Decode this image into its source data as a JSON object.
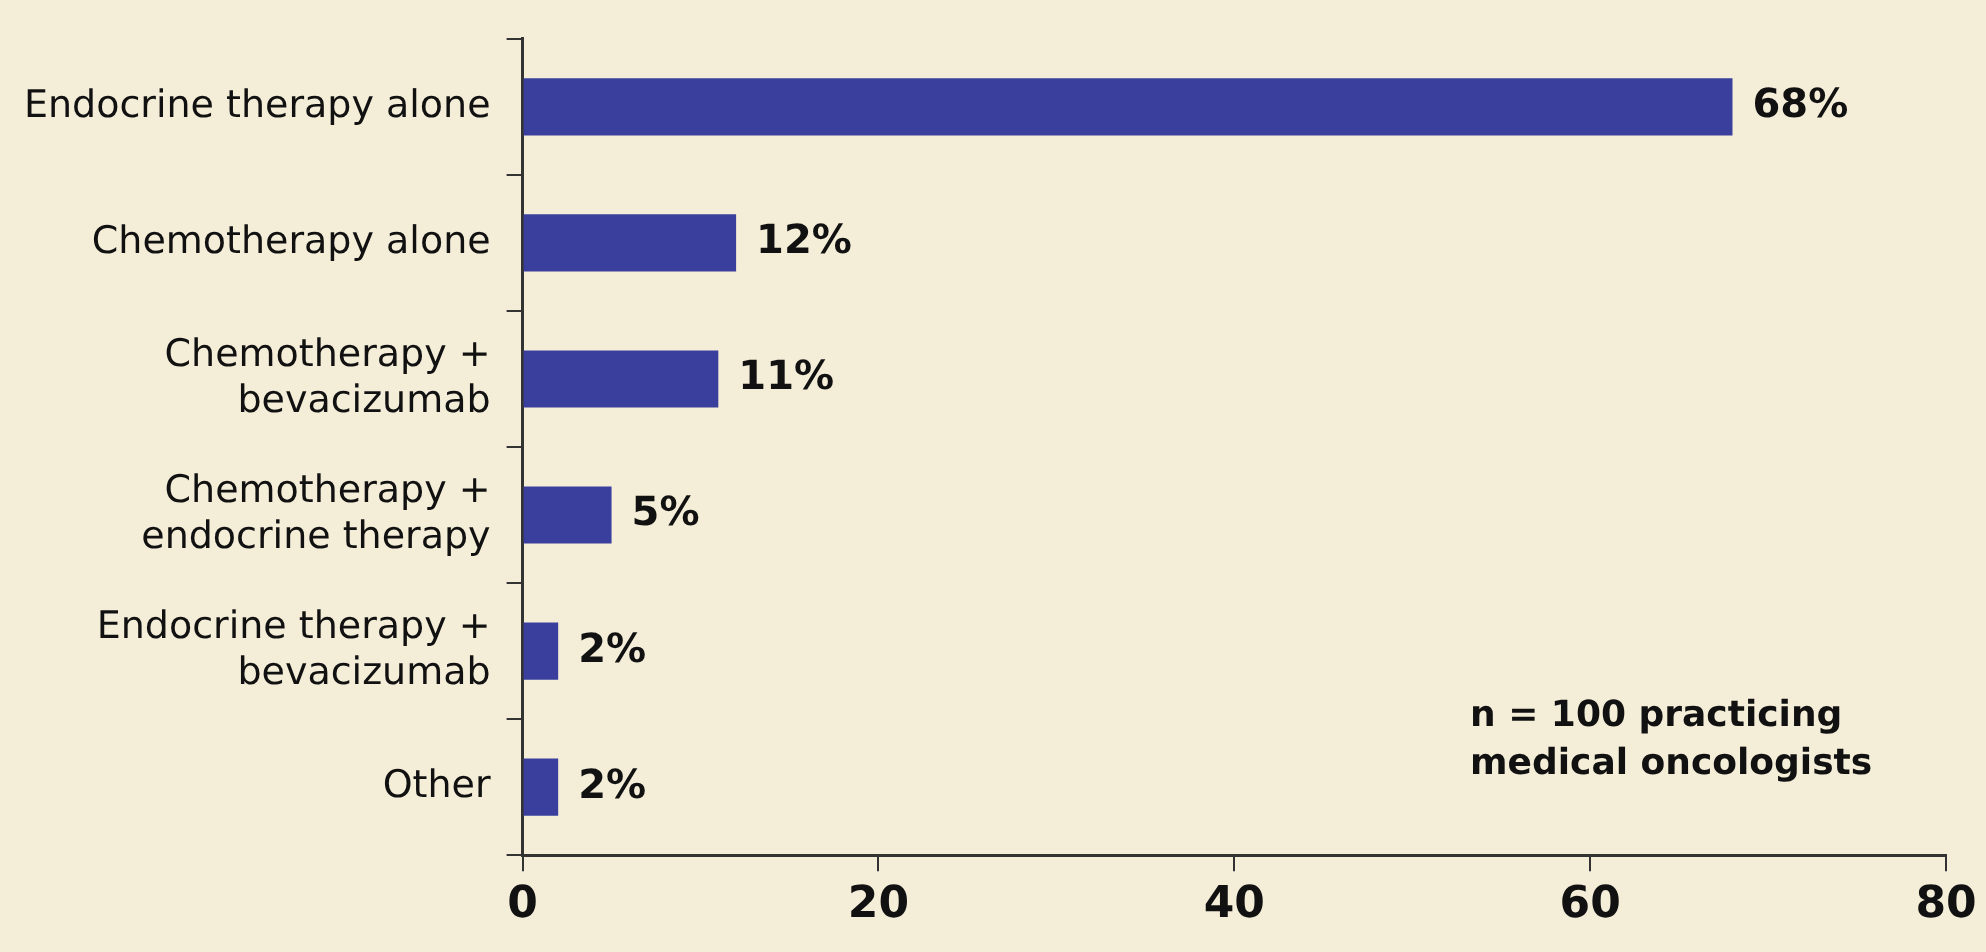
{
  "chart_data": {
    "type": "bar",
    "orientation": "horizontal",
    "categories": [
      "Endocrine therapy alone",
      "Chemotherapy alone",
      "Chemotherapy + bevacizumab",
      "Chemotherapy + endocrine therapy",
      "Endocrine therapy + bevacizumab",
      "Other"
    ],
    "values": [
      68,
      12,
      11,
      5,
      2,
      2
    ],
    "value_labels": [
      "68%",
      "12%",
      "11%",
      "5%",
      "2%",
      "2%"
    ],
    "color": "#3a3f9e",
    "xlim": [
      0,
      80
    ],
    "xticks": [
      0,
      20,
      40,
      60,
      80
    ],
    "grid": false,
    "legend": false,
    "annotations": [
      "n = 100 practicing medical oncologists"
    ]
  }
}
